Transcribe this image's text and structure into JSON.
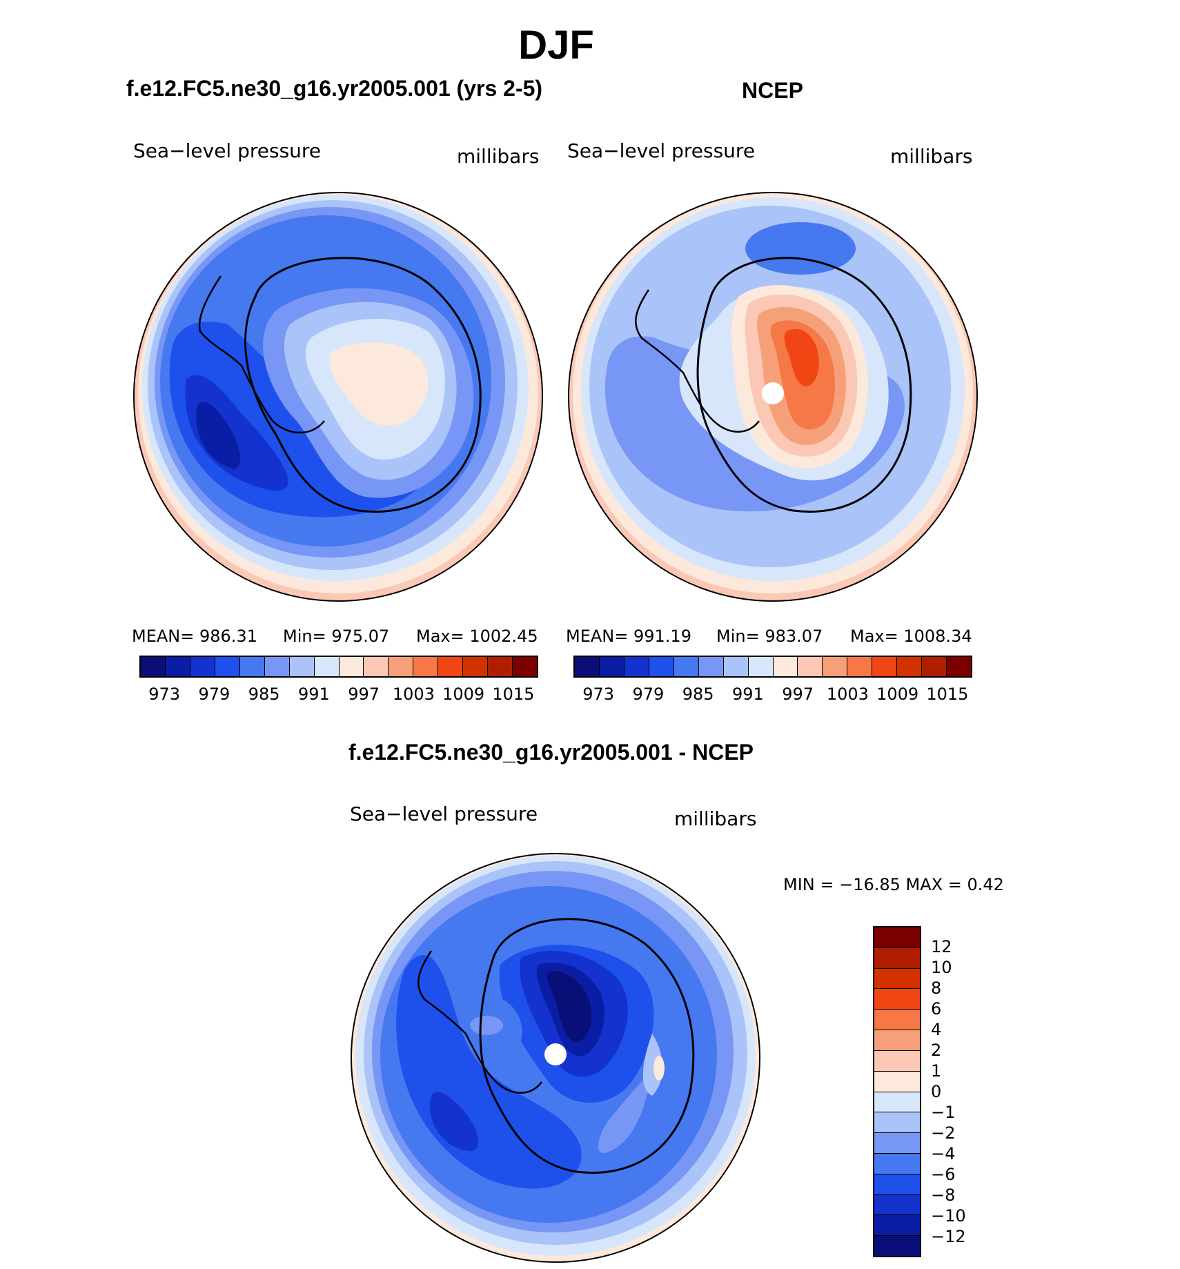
{
  "title": "DJF",
  "palette": [
    "#0a0f78",
    "#0a1ea5",
    "#1432cd",
    "#1e50eb",
    "#4678f0",
    "#7896f5",
    "#aac3f8",
    "#d7e6fa",
    "#fde8dc",
    "#fac8b4",
    "#f5a078",
    "#f57846",
    "#f04614",
    "#d23200",
    "#af1e00",
    "#7d0000"
  ],
  "diff_palette": [
    "#0a0f78",
    "#0a1ea5",
    "#1432cd",
    "#1e50eb",
    "#4678f0",
    "#7896f5",
    "#aac3f8",
    "#d7e6fa",
    "#fde8dc",
    "#fac8b4",
    "#f5a078",
    "#f57846",
    "#f04614",
    "#d23200",
    "#af1e00",
    "#7d0000"
  ],
  "panels": {
    "model": {
      "title": "f.e12.FC5.ne30_g16.yr2005.001 (yrs 2-5)",
      "left_label": "Sea−level pressure",
      "right_label": "millibars",
      "stats": {
        "mean": "MEAN=  986.31",
        "min": "Min=  975.07",
        "max": "Max=  1002.45"
      },
      "colorbar_ticks": [
        "973",
        "979",
        "985",
        "991",
        "997",
        "1003",
        "1009",
        "1015"
      ]
    },
    "obs": {
      "title": "NCEP",
      "left_label": "Sea−level pressure",
      "right_label": "millibars",
      "stats": {
        "mean": "MEAN=  991.19",
        "min": "Min=  983.07",
        "max": "Max=  1008.34"
      },
      "colorbar_ticks": [
        "973",
        "979",
        "985",
        "991",
        "997",
        "1003",
        "1009",
        "1015"
      ]
    },
    "diff": {
      "title": "f.e12.FC5.ne30_g16.yr2005.001 - NCEP",
      "left_label": "Sea−level pressure",
      "right_label": "millibars",
      "minmax": "MIN  =  −16.85  MAX  =      0.42",
      "colorbar_ticks": [
        "12",
        "10",
        "8",
        "6",
        "4",
        "2",
        "1",
        "0",
        "−1",
        "−2",
        "−4",
        "−6",
        "−8",
        "−10",
        "−12"
      ]
    }
  }
}
